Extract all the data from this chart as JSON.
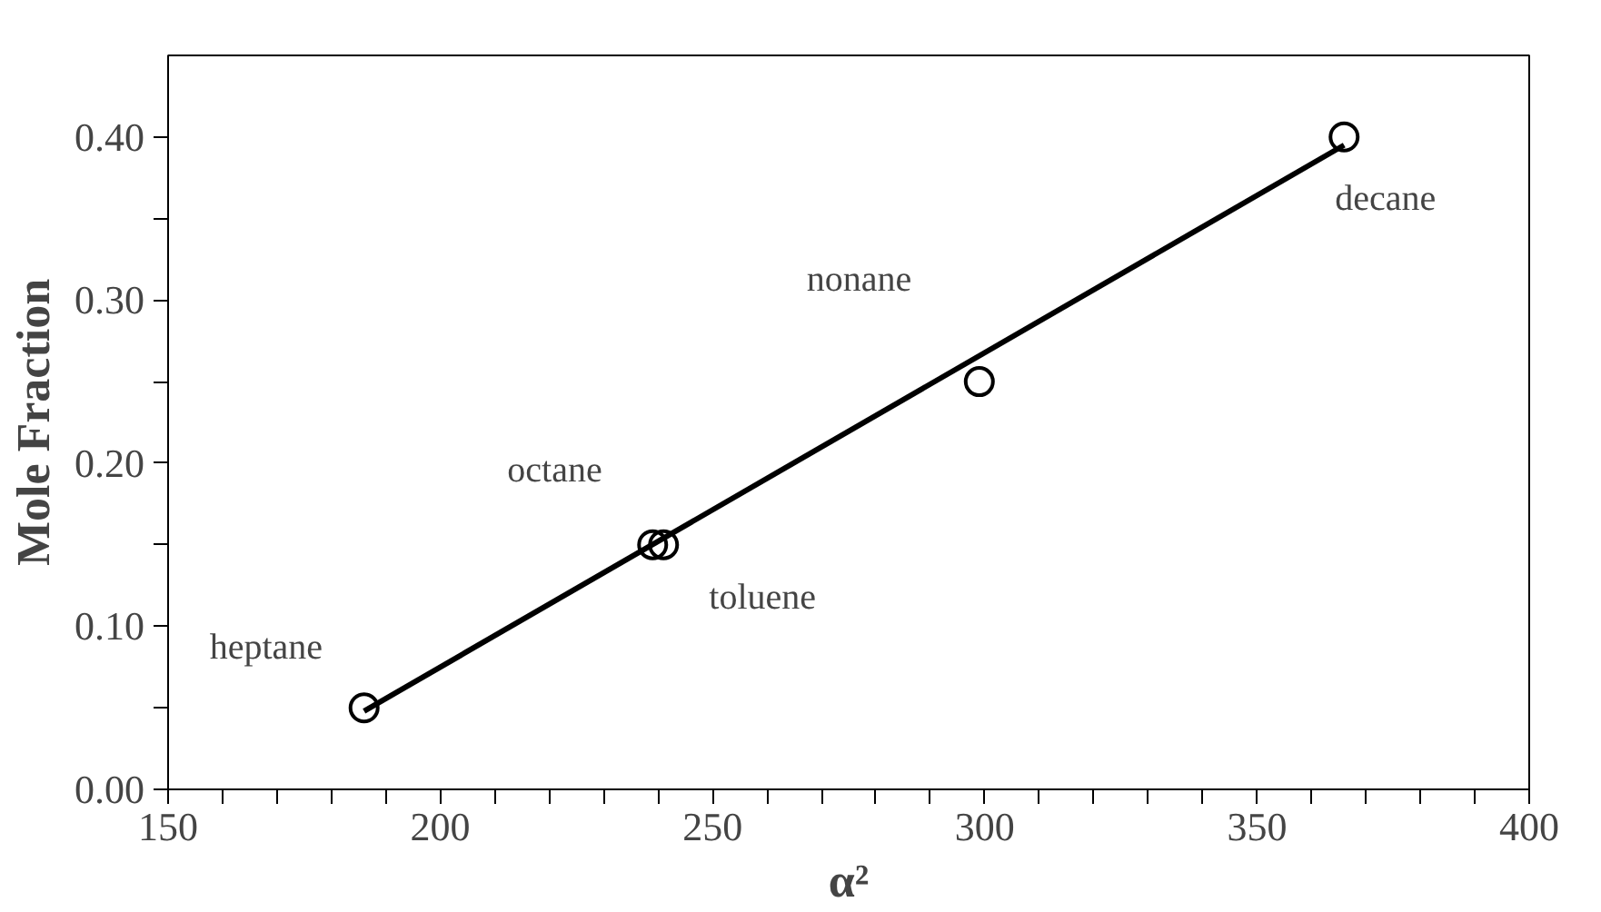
{
  "chart_data": {
    "type": "scatter",
    "xlabel": "α²",
    "ylabel": "Mole Fraction",
    "xlim": [
      150,
      400
    ],
    "ylim": [
      0,
      0.45
    ],
    "xticks": [
      150,
      {
        "value": 160,
        "label": null
      },
      {
        "value": 170,
        "label": null
      },
      {
        "value": 180,
        "label": null
      },
      {
        "value": 190,
        "label": null
      },
      200,
      {
        "value": 210,
        "label": null
      },
      {
        "value": 220,
        "label": null
      },
      {
        "value": 230,
        "label": null
      },
      {
        "value": 240,
        "label": null
      },
      250,
      {
        "value": 260,
        "label": null
      },
      {
        "value": 270,
        "label": null
      },
      {
        "value": 280,
        "label": null
      },
      {
        "value": 290,
        "label": null
      },
      300,
      {
        "value": 310,
        "label": null
      },
      {
        "value": 320,
        "label": null
      },
      {
        "value": 330,
        "label": null
      },
      {
        "value": 340,
        "label": null
      },
      350,
      {
        "value": 360,
        "label": null
      },
      {
        "value": 370,
        "label": null
      },
      {
        "value": 380,
        "label": null
      },
      {
        "value": 390,
        "label": null
      },
      400
    ],
    "yticks": [
      {
        "value": 0,
        "label": "0.00"
      },
      {
        "value": 0.05,
        "label": null
      },
      {
        "value": 0.1,
        "label": "0.10"
      },
      {
        "value": 0.15,
        "label": null
      },
      {
        "value": 0.2,
        "label": "0.20"
      },
      {
        "value": 0.25,
        "label": null
      },
      {
        "value": 0.3,
        "label": "0.30"
      },
      {
        "value": 0.35,
        "label": null
      },
      {
        "value": 0.4,
        "label": "0.40"
      }
    ],
    "grid": false,
    "series": [
      {
        "marker": "circle",
        "color": "#000000",
        "x": [
          186,
          239,
          241,
          299,
          366
        ],
        "values": [
          0.05,
          0.15,
          0.15,
          0.25,
          0.4
        ]
      },
      {
        "type": "line",
        "color": "#000000",
        "x": [
          186,
          366
        ],
        "values": [
          0.048,
          0.395
        ]
      }
    ],
    "annotations": [
      {
        "text": "heptane",
        "x": 186,
        "y": 0.05
      },
      {
        "text": "octane",
        "x": 239,
        "y": 0.15
      },
      {
        "text": "toluene",
        "x": 241,
        "y": 0.15
      },
      {
        "text": "nonane",
        "x": 299,
        "y": 0.25
      },
      {
        "text": "decane",
        "x": 366,
        "y": 0.4
      }
    ]
  }
}
